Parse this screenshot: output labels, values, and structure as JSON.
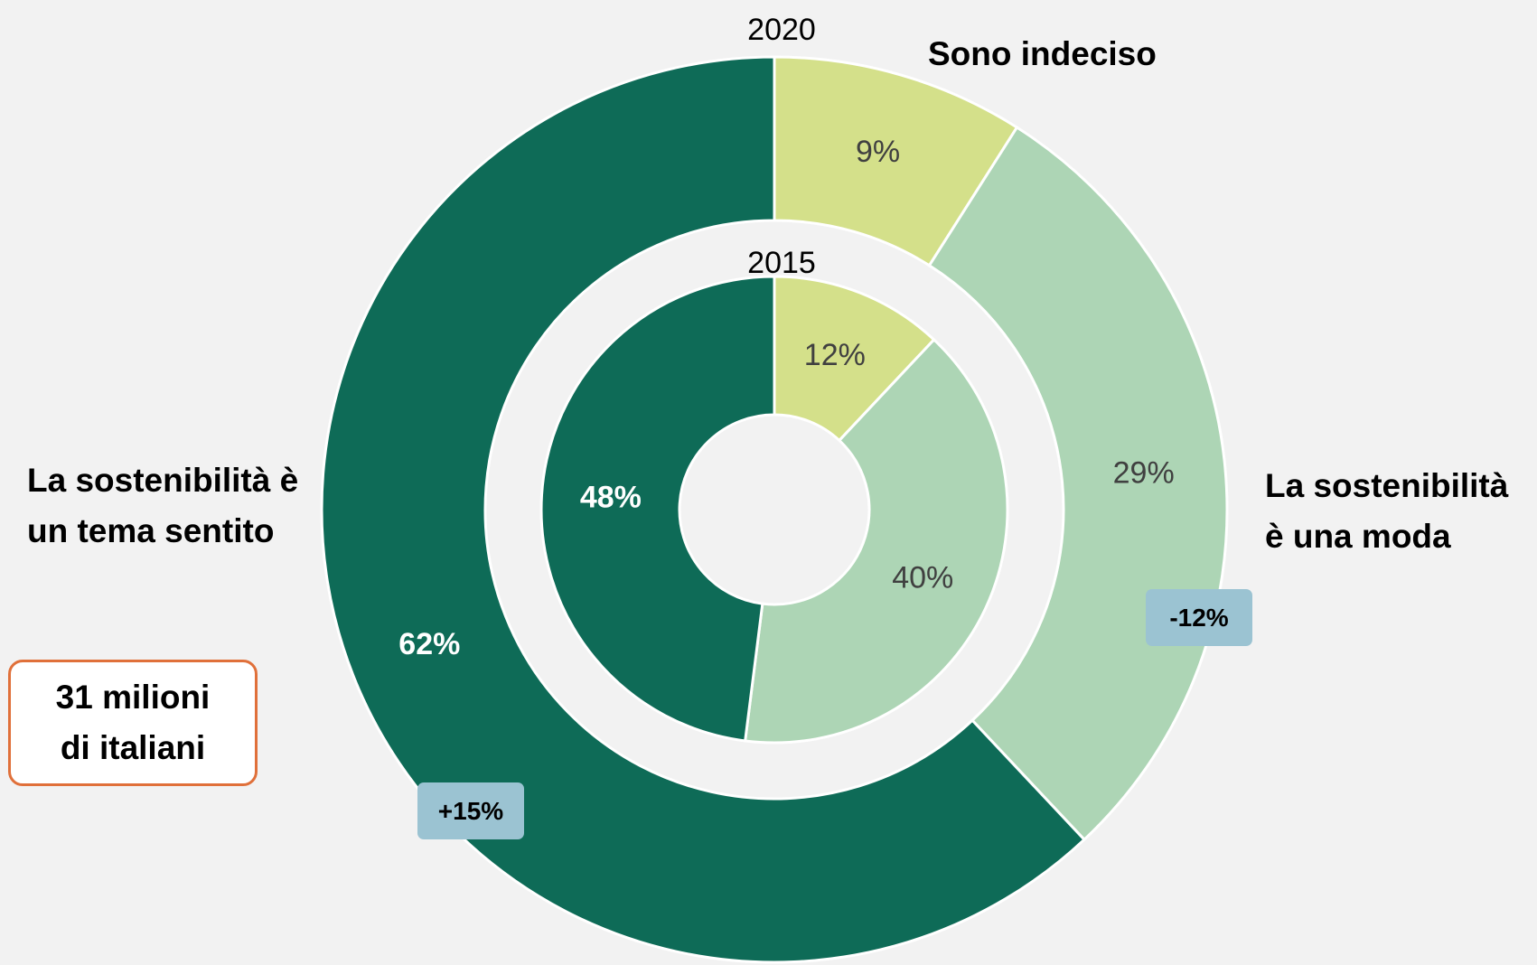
{
  "chart_data": {
    "type": "donut",
    "categories": [
      "Sono indeciso",
      "La sostenibilità è una moda",
      "La sostenibilità è un tema sentito"
    ],
    "colors": [
      "#d4e08a",
      "#add5b5",
      "#0e6b57"
    ],
    "series": [
      {
        "name": "2020",
        "values": [
          9,
          29,
          62
        ],
        "value_labels": [
          "9%",
          "29%",
          "62%"
        ]
      },
      {
        "name": "2015",
        "values": [
          12,
          40,
          48
        ],
        "value_labels": [
          "12%",
          "40%",
          "48%"
        ]
      }
    ],
    "annotations": [
      {
        "text": "+15%"
      },
      {
        "text": "-12%"
      },
      {
        "text": "31 milioni di italiani"
      }
    ]
  }
}
